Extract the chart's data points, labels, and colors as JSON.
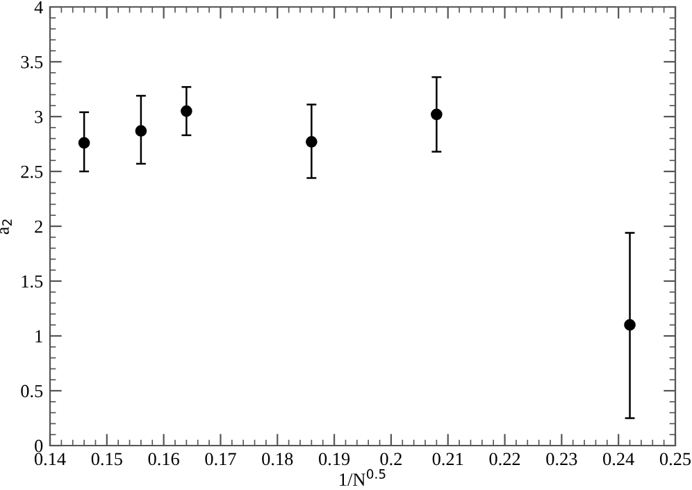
{
  "chart_data": {
    "type": "scatter",
    "xlabel": "1/N$^{0.5}$",
    "ylabel": "a$_{2}$",
    "x": [
      0.146,
      0.156,
      0.164,
      0.186,
      0.208,
      0.242
    ],
    "values": [
      2.76,
      2.87,
      3.05,
      2.77,
      3.02,
      1.1
    ],
    "errors": [
      [
        2.5,
        3.04
      ],
      [
        2.57,
        3.19
      ],
      [
        2.83,
        3.27
      ],
      [
        2.44,
        3.11
      ],
      [
        2.68,
        3.36
      ],
      [
        0.25,
        1.94
      ]
    ],
    "color": "#000000",
    "marker": "circle",
    "grid": false,
    "legend": false,
    "xlim": [
      0.14,
      0.25
    ],
    "xticks": [
      0.14,
      0.15,
      0.16,
      0.17,
      0.18,
      0.19,
      {
        "value": 0.2,
        "label": "0.2"
      },
      0.21,
      0.22,
      0.23,
      0.24,
      0.25
    ],
    "ylim": [
      0,
      4
    ],
    "yticks": [
      0,
      0.5,
      1,
      1.5,
      2,
      2.5,
      3,
      3.5,
      4
    ]
  }
}
